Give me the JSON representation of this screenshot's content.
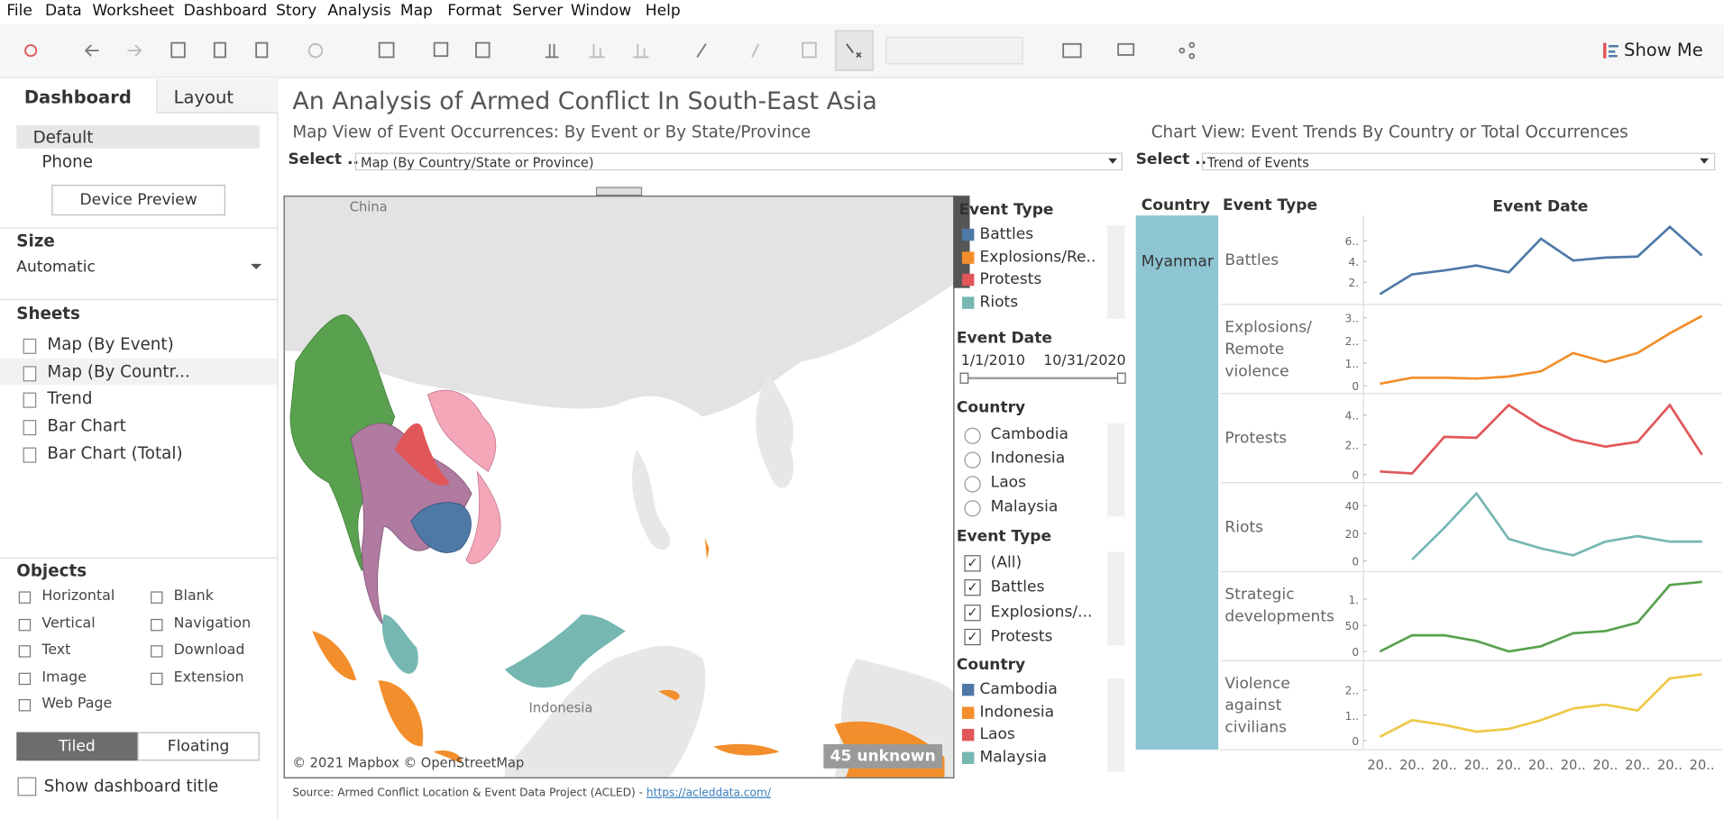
{
  "menu": [
    "File",
    "Data",
    "Worksheet",
    "Dashboard",
    "Story",
    "Analysis",
    "Map",
    "Format",
    "Server",
    "Window",
    "Help"
  ],
  "toolbar": {
    "show_me": "Show Me"
  },
  "sidebar": {
    "tabs": [
      "Dashboard",
      "Layout"
    ],
    "devices": [
      "Default",
      "Phone"
    ],
    "device_preview": "Device Preview",
    "size_title": "Size",
    "size_value": "Automatic",
    "sheets_title": "Sheets",
    "sheets": [
      "Map (By Event)",
      "Map (By Countr...",
      "Trend",
      "Bar Chart",
      "Bar Chart (Total)"
    ],
    "objects_title": "Objects",
    "objects": [
      "Horizontal",
      "Blank",
      "Vertical",
      "Navigation",
      "Text",
      "Download",
      "Image",
      "Extension",
      "Web Page"
    ],
    "layout_modes": [
      "Tiled",
      "Floating"
    ],
    "show_title": "Show dashboard title"
  },
  "dashboard": {
    "title": "An Analysis of Armed Conflict In South-East Asia",
    "map_subtitle": "Map View of Event Occurrences: By Event or By State/Province",
    "chart_subtitle": "Chart View: Event Trends By Country or Total Occurrences",
    "select_label": "Select ..",
    "map_select": "Map (By Country/State or Province)",
    "chart_select": "Trend of Events",
    "map": {
      "labels": [
        "China",
        "Indonesia"
      ],
      "attribution": "© 2021 Mapbox © OpenStreetMap",
      "unknown": "45 unknown"
    },
    "filters": {
      "event_legend_title": "Event Type",
      "event_legend": [
        {
          "label": "Battles",
          "color": "#4e79a7"
        },
        {
          "label": "Explosions/Re..",
          "color": "#f28e2b"
        },
        {
          "label": "Protests",
          "color": "#e15759"
        },
        {
          "label": "Riots",
          "color": "#76b7b2"
        }
      ],
      "date_title": "Event Date",
      "date_from": "1/1/2010",
      "date_to": "10/31/2020",
      "country_filter_title": "Country",
      "country_filter": [
        "Cambodia",
        "Indonesia",
        "Laos",
        "Malaysia"
      ],
      "event_filter_title": "Event Type",
      "event_filter": [
        "(All)",
        "Battles",
        "Explosions/...",
        "Protests"
      ],
      "country_legend_title": "Country",
      "country_legend": [
        {
          "label": "Cambodia",
          "color": "#4e79a7"
        },
        {
          "label": "Indonesia",
          "color": "#f28e2b"
        },
        {
          "label": "Laos",
          "color": "#e15759"
        },
        {
          "label": "Malaysia",
          "color": "#76b7b2"
        }
      ]
    },
    "source_prefix": "Source:  Armed Conflict Location & Event Data Project (ACLED) - ",
    "source_link": "https://acleddata.com/"
  },
  "trend": {
    "headers": [
      "Country",
      "Event Type",
      "Event Date"
    ],
    "country": "Myanmar",
    "x_labels": [
      "20..",
      "20..",
      "20..",
      "20..",
      "20..",
      "20..",
      "20..",
      "20..",
      "20..",
      "20..",
      "20.."
    ],
    "panels": [
      {
        "label": "Battles",
        "color": "#4e79a7",
        "ylim": [
          50,
          780
        ],
        "yticks": [
          {
            "value": 600,
            "label": "6.."
          },
          {
            "value": 400,
            "label": "4."
          },
          {
            "value": 200,
            "label": "2."
          }
        ],
        "values": [
          86,
          276,
          314,
          362,
          295,
          619,
          410,
          438,
          448,
          733,
          457
        ]
      },
      {
        "label": "Explosions/ Remote violence",
        "color": "#f28e2b",
        "ylim": [
          -5,
          330
        ],
        "yticks": [
          {
            "value": 300,
            "label": "3.."
          },
          {
            "value": 200,
            "label": "2.."
          },
          {
            "value": 100,
            "label": "1.."
          },
          0
        ],
        "values": [
          9,
          36,
          36,
          32,
          41,
          64,
          145,
          105,
          145,
          232,
          309
        ]
      },
      {
        "label": "Protests",
        "color": "#e15759",
        "ylim": [
          -10,
          500
        ],
        "yticks": [
          {
            "value": 400,
            "label": "4.."
          },
          {
            "value": 200,
            "label": "2.."
          },
          0
        ],
        "values": [
          20,
          7,
          253,
          247,
          467,
          327,
          233,
          187,
          220,
          467,
          133
        ]
      },
      {
        "label": "Riots",
        "color": "#76b7b2",
        "ylim": [
          -3,
          52
        ],
        "yticks": [
          40,
          20,
          0
        ],
        "values": [
          null,
          1,
          24,
          49,
          16,
          9,
          4,
          14,
          18,
          14,
          14
        ]
      },
      {
        "label": "Strategic developments",
        "color": "#59a14f",
        "ylim": [
          -5,
          140
        ],
        "yticks": [
          {
            "value": 100,
            "label": "1."
          },
          50,
          0
        ],
        "values": [
          0,
          31,
          31,
          20,
          0,
          10,
          35,
          39,
          55,
          127,
          133
        ]
      },
      {
        "label": "Violence against civilians",
        "color": "#edc948",
        "ylim": [
          -10,
          290
        ],
        "yticks": [
          {
            "value": 200,
            "label": "2.."
          },
          {
            "value": 100,
            "label": "1.."
          },
          0
        ],
        "values": [
          15,
          81,
          62,
          35,
          46,
          81,
          127,
          142,
          119,
          246,
          262
        ]
      }
    ]
  }
}
